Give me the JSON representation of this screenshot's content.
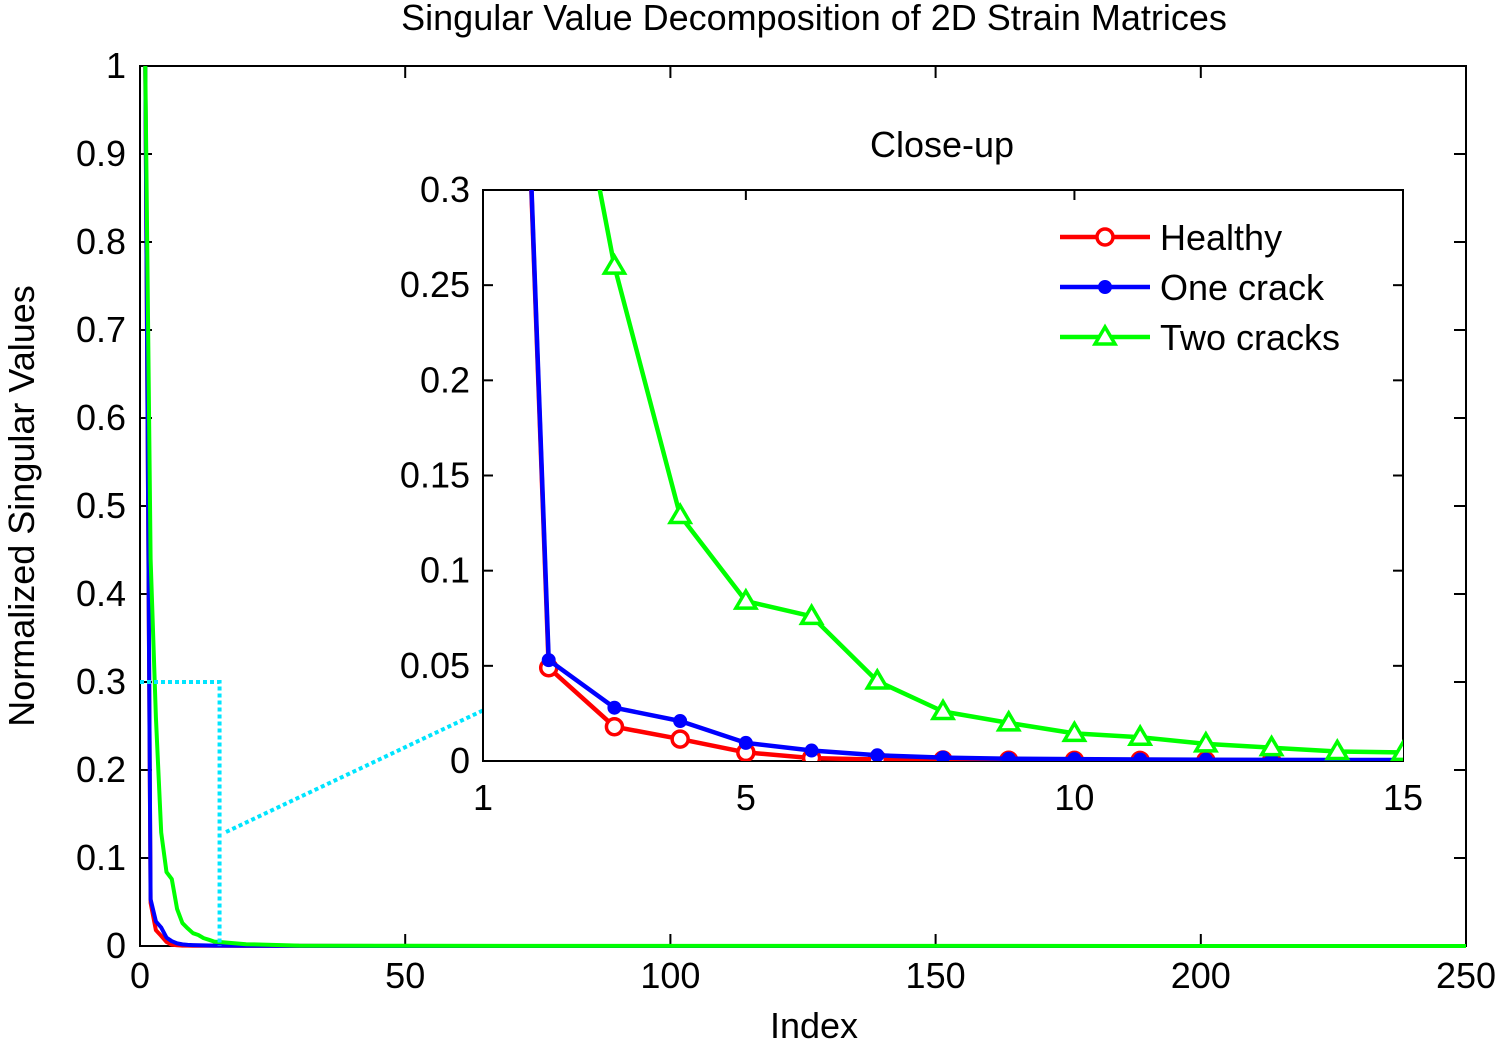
{
  "chart_data": [
    {
      "type": "line",
      "title": "Singular Value Decomposition of 2D Strain Matrices",
      "xlabel": "Index",
      "ylabel": "Normalized Singular Values",
      "xlim": [
        0,
        250
      ],
      "ylim": [
        0,
        1
      ],
      "xticks": [
        "0",
        "50",
        "100",
        "150",
        "200",
        "250"
      ],
      "yticks": [
        "0",
        "0.1",
        "0.2",
        "0.3",
        "0.4",
        "0.5",
        "0.6",
        "0.7",
        "0.8",
        "0.9",
        "1"
      ],
      "grid": false,
      "series": [
        {
          "name": "Healthy",
          "color": "#ff0000",
          "marker": "circle",
          "x": [
            1,
            2,
            3,
            4,
            5,
            6,
            7,
            8,
            9,
            10,
            11,
            12,
            13,
            14,
            15,
            20,
            30,
            50,
            100,
            150,
            200,
            250
          ],
          "values": [
            1.0,
            0.049,
            0.018,
            0.0115,
            0.0045,
            0.0015,
            0.0008,
            0.0005,
            0.0004,
            0.0003,
            0.0003,
            0.0002,
            0.0002,
            0.0002,
            0.0002,
            0.0001,
            0.0001,
            0,
            0,
            0,
            0,
            0
          ]
        },
        {
          "name": "One crack",
          "color": "#0000ff",
          "marker": "filled-circle",
          "x": [
            1,
            2,
            3,
            4,
            5,
            6,
            7,
            8,
            9,
            10,
            11,
            12,
            13,
            14,
            15,
            20,
            30,
            50,
            100,
            150,
            200,
            250
          ],
          "values": [
            1.0,
            0.053,
            0.028,
            0.021,
            0.0095,
            0.0055,
            0.003,
            0.0018,
            0.0012,
            0.001,
            0.0008,
            0.0007,
            0.0006,
            0.0005,
            0.0005,
            0.0003,
            0.0001,
            0,
            0,
            0,
            0,
            0
          ]
        },
        {
          "name": "Two cracks",
          "color": "#00ff00",
          "marker": "triangle",
          "x": [
            1,
            2,
            3,
            4,
            5,
            6,
            7,
            8,
            9,
            10,
            11,
            12,
            13,
            14,
            15,
            20,
            30,
            50,
            100,
            150,
            200,
            250
          ],
          "values": [
            1.0,
            0.44,
            0.26,
            0.129,
            0.084,
            0.076,
            0.042,
            0.026,
            0.02,
            0.0145,
            0.0125,
            0.009,
            0.007,
            0.005,
            0.0045,
            0.002,
            0.0005,
            0.0002,
            0.0001,
            0.0001,
            0,
            0
          ]
        }
      ],
      "zoom_box": {
        "x": [
          0,
          15
        ],
        "y": [
          0,
          0.3
        ],
        "color": "#00e5ff"
      }
    },
    {
      "type": "line",
      "title": "Close-up",
      "xlim": [
        1,
        15
      ],
      "ylim": [
        0,
        0.3
      ],
      "xticks": [
        "1",
        "5",
        "10",
        "15"
      ],
      "yticks": [
        "0",
        "0.05",
        "0.1",
        "0.15",
        "0.2",
        "0.25",
        "0.3"
      ],
      "legend_position": "top-right",
      "legend": [
        "Healthy",
        "One crack",
        "Two cracks"
      ]
    }
  ]
}
